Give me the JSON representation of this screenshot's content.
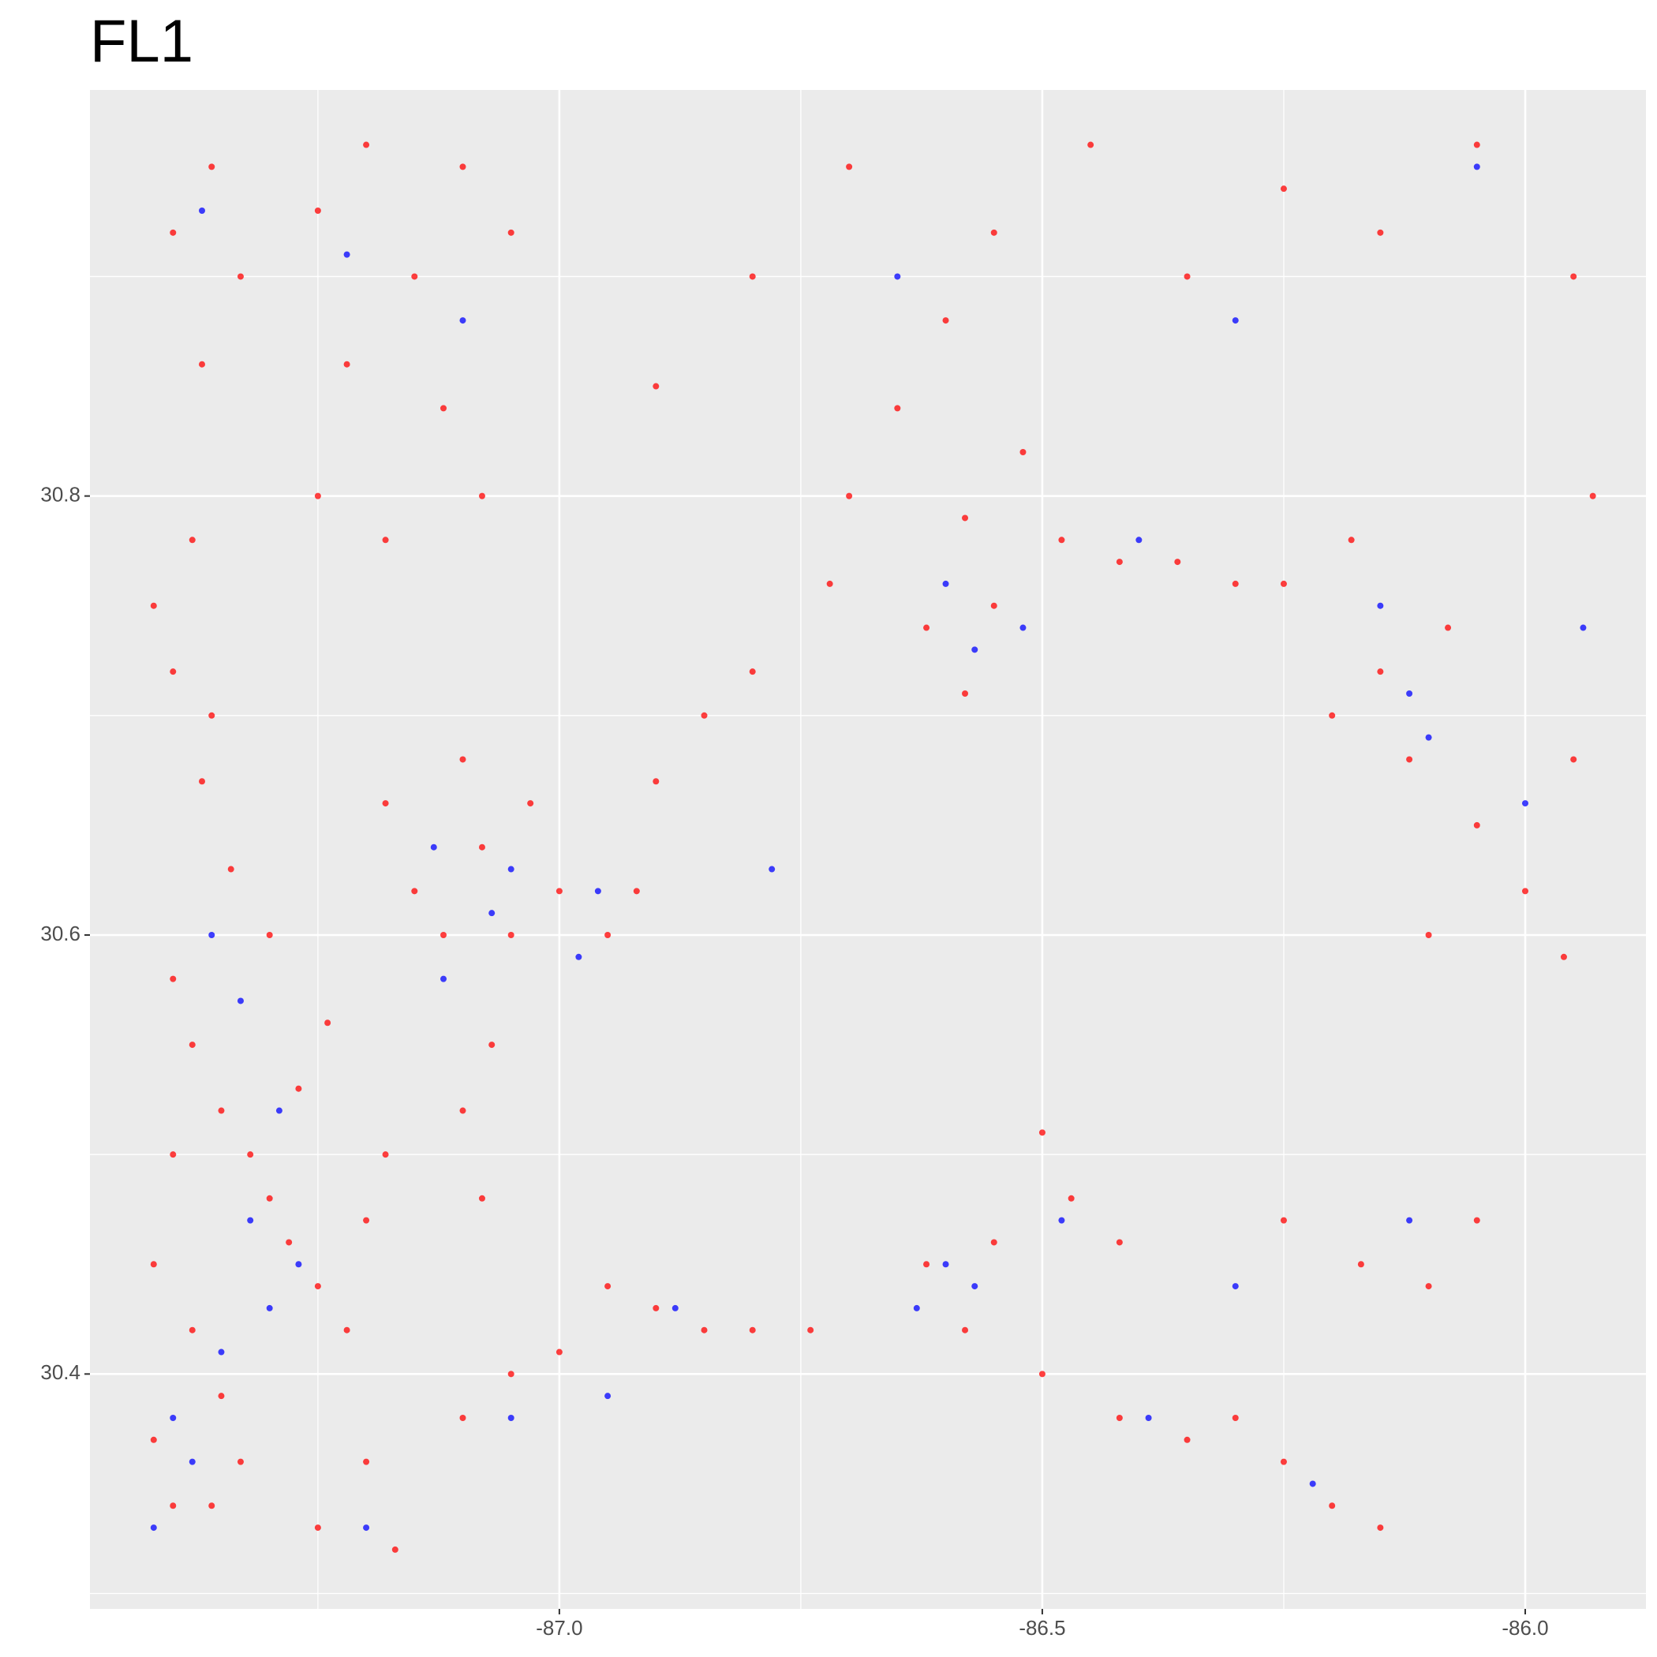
{
  "chart_data": {
    "type": "scatter",
    "title": "FL1",
    "xlim": [
      -87.486,
      -85.875
    ],
    "ylim": [
      30.293,
      30.985
    ],
    "xticks": [
      {
        "value": -87,
        "label": "-87.0"
      },
      {
        "value": -86.5,
        "label": "-86.5"
      },
      {
        "value": -86,
        "label": "-86.0"
      }
    ],
    "yticks": [
      30.4,
      30.6,
      30.8
    ],
    "x_minor_grid": [
      -87.25,
      -86.75,
      -86.25
    ],
    "y_minor_grid": [
      30.3,
      30.5,
      30.7,
      30.9
    ],
    "grid": true,
    "series": [
      {
        "color": "#ff0000",
        "x": [
          -87.4,
          -87.38,
          -87.35,
          -87.32,
          -87.3,
          -87.28,
          -87.25,
          -87.22,
          -87.2,
          -87.18,
          -87.4,
          -87.42,
          -87.38,
          -87.35,
          -87.33,
          -87.36,
          -87.4,
          -87.42,
          -87.27,
          -87.24,
          -87.3,
          -87.34,
          -87.37,
          -87.4,
          -87.38,
          -87.42,
          -87.36,
          -87.4,
          -87.36,
          -87.33,
          -87.37,
          -87.25,
          -87.2,
          -87.15,
          -87.1,
          -87.05,
          -87.22,
          -87.12,
          -87.08,
          -87.18,
          -87.25,
          -87.18,
          -87.15,
          -87.12,
          -87.08,
          -87.05,
          -87.03,
          -87.1,
          -87.0,
          -86.95,
          -86.92,
          -87.07,
          -87.1,
          -87.08,
          -86.9,
          -86.85,
          -86.8,
          -86.7,
          -86.65,
          -86.72,
          -86.62,
          -86.58,
          -86.55,
          -86.58,
          -86.52,
          -86.48,
          -86.42,
          -86.36,
          -86.3,
          -86.25,
          -86.8,
          -86.7,
          -86.55,
          -86.45,
          -86.35,
          -86.25,
          -86.15,
          -86.05,
          -85.95,
          -86.9,
          -86.6,
          -86.18,
          -86.15,
          -86.12,
          -86.2,
          -86.08,
          -86.05,
          -86.0,
          -85.95,
          -85.93,
          -86.1,
          -85.96,
          -87.1,
          -87.05,
          -87.0,
          -86.95,
          -86.9,
          -86.85,
          -86.8,
          -86.74,
          -86.62,
          -86.58,
          -86.55,
          -86.5,
          -86.47,
          -86.42,
          -86.5,
          -86.42,
          -86.35,
          -86.3,
          -86.25,
          -86.2,
          -86.15,
          -86.25,
          -86.17,
          -86.1,
          -86.05,
          -87.25,
          -87.17,
          -87.2
        ],
        "values": [
          30.58,
          30.55,
          30.52,
          30.5,
          30.48,
          30.46,
          30.44,
          30.42,
          30.47,
          30.5,
          30.5,
          30.45,
          30.42,
          30.39,
          30.36,
          30.34,
          30.34,
          30.37,
          30.53,
          30.56,
          30.6,
          30.63,
          30.67,
          30.72,
          30.78,
          30.75,
          30.7,
          30.92,
          30.95,
          30.9,
          30.86,
          30.93,
          30.96,
          30.9,
          30.95,
          30.92,
          30.86,
          30.84,
          30.8,
          30.78,
          30.8,
          30.66,
          30.62,
          30.6,
          30.64,
          30.6,
          30.66,
          30.68,
          30.62,
          30.6,
          30.62,
          30.55,
          30.52,
          30.48,
          30.67,
          30.7,
          30.72,
          30.8,
          30.84,
          30.76,
          30.74,
          30.79,
          30.75,
          30.71,
          30.82,
          30.78,
          30.77,
          30.77,
          30.76,
          30.76,
          30.9,
          30.95,
          30.92,
          30.96,
          30.9,
          30.94,
          30.92,
          30.96,
          30.9,
          30.85,
          30.88,
          30.78,
          30.72,
          30.68,
          30.7,
          30.74,
          30.65,
          30.62,
          30.68,
          30.8,
          30.6,
          30.59,
          30.38,
          30.4,
          30.41,
          30.44,
          30.43,
          30.42,
          30.42,
          30.42,
          30.45,
          30.42,
          30.46,
          30.51,
          30.48,
          30.46,
          30.4,
          30.38,
          30.37,
          30.38,
          30.36,
          30.34,
          30.33,
          30.47,
          30.45,
          30.44,
          30.47,
          30.33,
          30.32,
          30.36
        ]
      },
      {
        "color": "#0000ff",
        "x": [
          -87.32,
          -87.3,
          -87.27,
          -87.29,
          -87.35,
          -87.38,
          -87.33,
          -87.36,
          -87.4,
          -87.42,
          -87.37,
          -87.22,
          -87.1,
          -87.13,
          -87.07,
          -87.05,
          -87.12,
          -86.98,
          -86.96,
          -86.78,
          -86.6,
          -86.57,
          -86.52,
          -86.4,
          -86.65,
          -86.3,
          -86.12,
          -86.1,
          -86.15,
          -86.0,
          -85.94,
          -86.05,
          -86.6,
          -86.57,
          -86.63,
          -86.48,
          -86.88,
          -86.95,
          -86.39,
          -86.22,
          -86.12,
          -86.3,
          -87.05,
          -87.2
        ],
        "values": [
          30.47,
          30.43,
          30.45,
          30.52,
          30.41,
          30.36,
          30.57,
          30.6,
          30.38,
          30.33,
          30.93,
          30.91,
          30.88,
          30.64,
          30.61,
          30.63,
          30.58,
          30.59,
          30.62,
          30.63,
          30.76,
          30.73,
          30.74,
          30.78,
          30.9,
          30.88,
          30.71,
          30.69,
          30.75,
          30.66,
          30.74,
          30.95,
          30.45,
          30.44,
          30.43,
          30.47,
          30.43,
          30.39,
          30.38,
          30.35,
          30.47,
          30.44,
          30.38,
          30.33
        ]
      }
    ]
  }
}
